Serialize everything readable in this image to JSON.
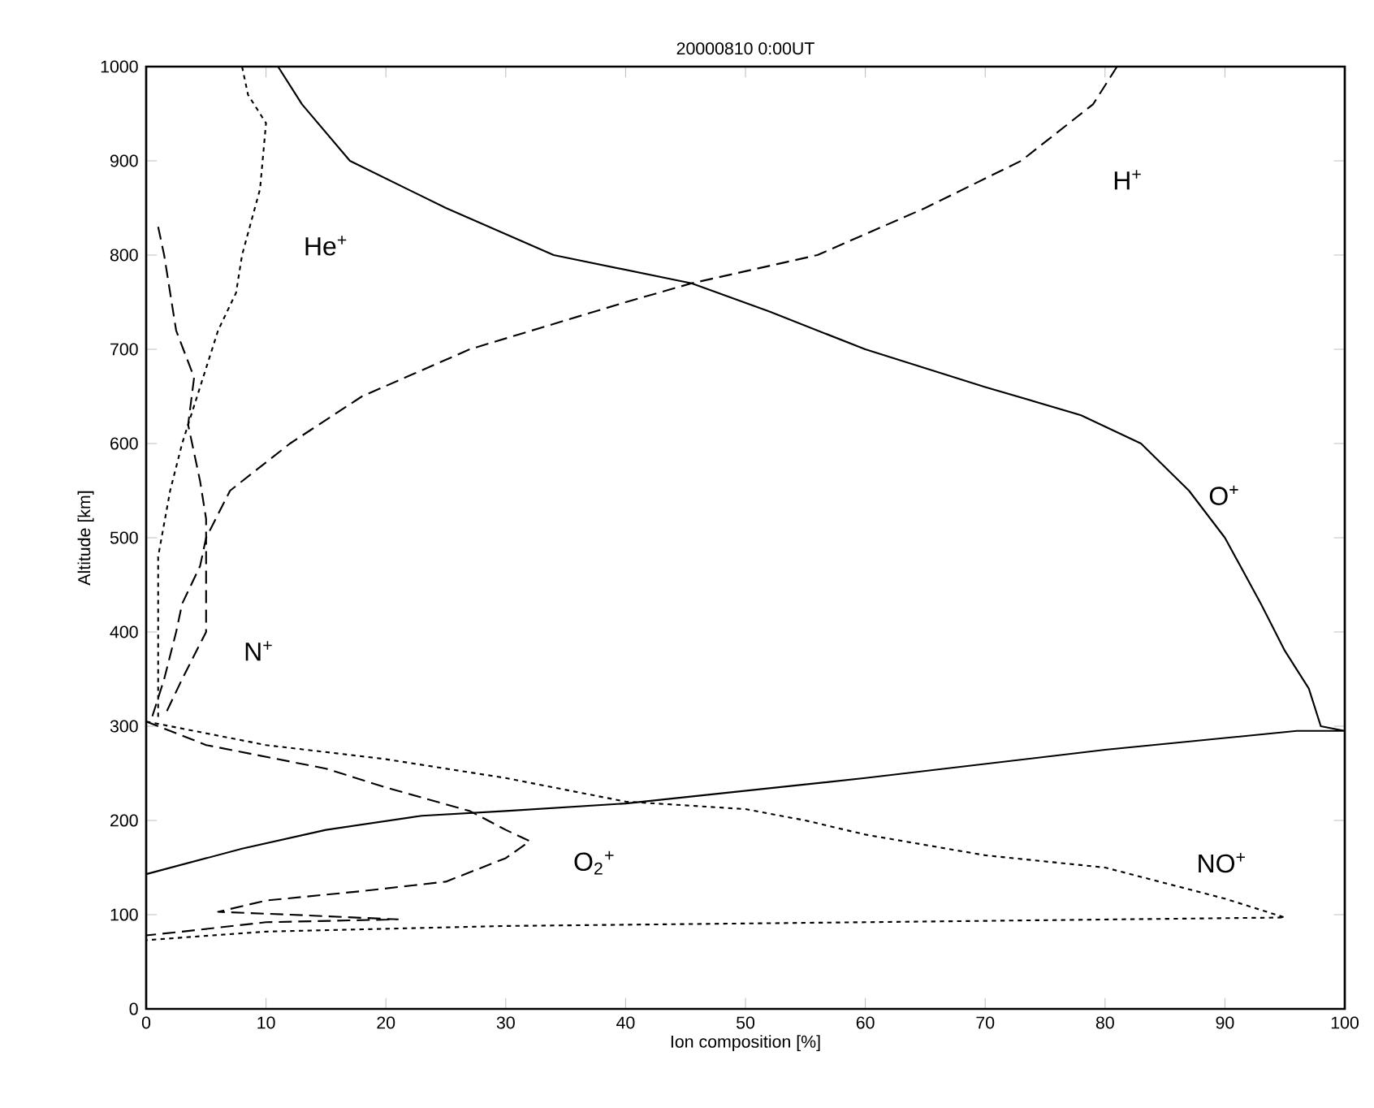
{
  "chart_data": {
    "type": "line",
    "title": "20000810 0:00UT",
    "xlabel": "Ion composition  [%]",
    "ylabel": "Altitude  [km]",
    "xlim": [
      0,
      100
    ],
    "ylim": [
      0,
      1000
    ],
    "xticks": [
      0,
      10,
      20,
      30,
      40,
      50,
      60,
      70,
      80,
      90,
      100
    ],
    "yticks": [
      0,
      100,
      200,
      300,
      400,
      500,
      600,
      700,
      800,
      900,
      1000
    ],
    "grid": false,
    "series": [
      {
        "name": "O$^{+}$",
        "color": "#000000",
        "line_style": "solid",
        "x": [
          11,
          13,
          17,
          25,
          34,
          45.5,
          52,
          60,
          70,
          78,
          83,
          87,
          90,
          93,
          95,
          97,
          98,
          100,
          96,
          80,
          60,
          40,
          30,
          23,
          15,
          8,
          0
        ],
        "values": [
          1000,
          960,
          900,
          850,
          800,
          770,
          740,
          700,
          660,
          630,
          600,
          550,
          500,
          430,
          380,
          340,
          300,
          295,
          295,
          275,
          245,
          218,
          210,
          205,
          190,
          170,
          143
        ]
      },
      {
        "name": "H$^{+}$",
        "color": "#000000",
        "line_style": "dashed",
        "x": [
          81,
          79,
          73,
          65,
          56,
          45.5,
          40,
          27,
          18,
          12,
          7,
          5,
          4.5,
          3,
          2.5,
          1.5,
          0.5
        ],
        "values": [
          1000,
          960,
          900,
          850,
          800,
          770,
          750,
          700,
          650,
          600,
          550,
          500,
          470,
          430,
          400,
          350,
          310
        ]
      },
      {
        "name": "He$^{+}$",
        "color": "#000000",
        "line_style": "dotted",
        "x": [
          8,
          8.5,
          10,
          9.5,
          8,
          7.5,
          6,
          5,
          4,
          3,
          2,
          1,
          1
        ],
        "values": [
          1000,
          970,
          940,
          870,
          800,
          760,
          720,
          680,
          640,
          600,
          550,
          480,
          310
        ]
      },
      {
        "name": "N$^{+}$",
        "color": "#000000",
        "line_style": "dashed",
        "x": [
          1,
          1.5,
          2.5,
          4,
          3.5,
          4.5,
          5,
          5,
          3,
          1.5
        ],
        "values": [
          830,
          800,
          720,
          670,
          620,
          560,
          520,
          400,
          350,
          310
        ]
      },
      {
        "name": "O$_{2}$$^{+}$",
        "color": "#000000",
        "line_style": "dashed",
        "x": [
          0,
          5,
          15,
          20,
          27,
          30,
          32,
          30,
          25,
          18,
          10,
          6,
          12,
          21,
          10,
          3,
          0
        ],
        "values": [
          305,
          280,
          255,
          235,
          210,
          190,
          178,
          160,
          135,
          125,
          115,
          103,
          100,
          95,
          92,
          82,
          78
        ]
      },
      {
        "name": "NO$^{+}$",
        "color": "#000000",
        "line_style": "dotted",
        "x": [
          0,
          10,
          20,
          30,
          40,
          50,
          55,
          60,
          70,
          80,
          90,
          95,
          60,
          30,
          10,
          0
        ],
        "values": [
          305,
          280,
          265,
          245,
          220,
          212,
          200,
          185,
          163,
          150,
          117,
          97,
          92,
          88,
          82,
          73
        ]
      }
    ]
  }
}
